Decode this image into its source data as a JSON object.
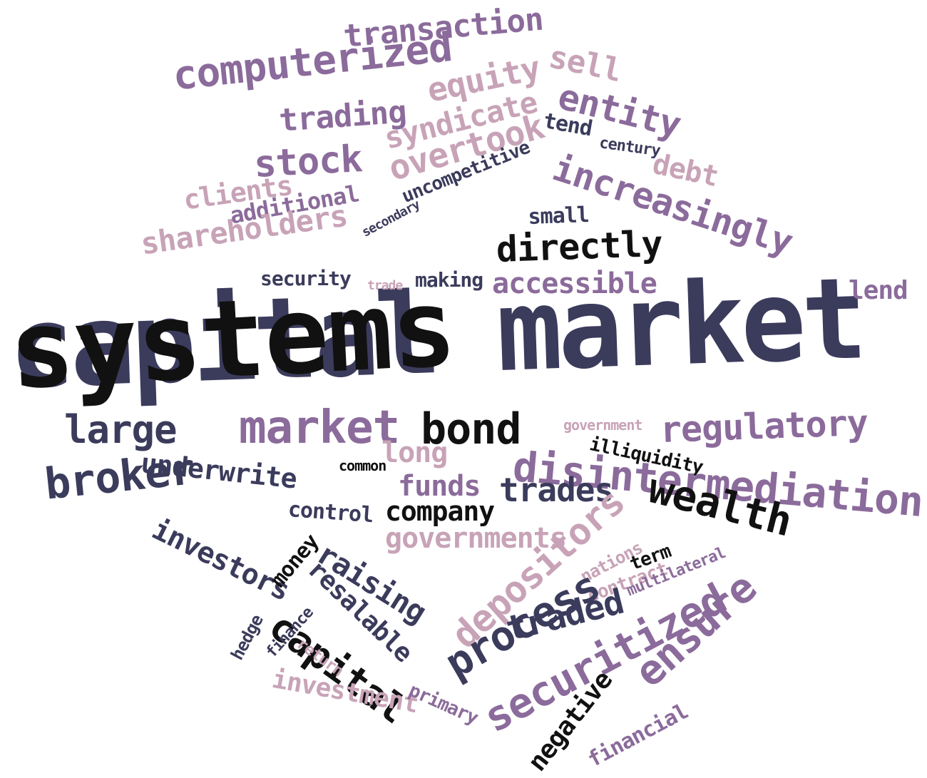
{
  "palette": {
    "navy": "#3b3b5c",
    "black": "#111111",
    "purple": "#8b6b9b",
    "mauve": "#c8a3b7"
  },
  "headline": "capital market",
  "words": [
    {
      "text": "transaction",
      "color": "purple"
    },
    {
      "text": "computerized",
      "color": "purple"
    },
    {
      "text": "sell",
      "color": "mauve"
    },
    {
      "text": "equity",
      "color": "mauve"
    },
    {
      "text": "entity",
      "color": "purple"
    },
    {
      "text": "trading",
      "color": "purple"
    },
    {
      "text": "syndicate",
      "color": "mauve"
    },
    {
      "text": "tend",
      "color": "navy"
    },
    {
      "text": "century",
      "color": "navy"
    },
    {
      "text": "debt",
      "color": "mauve"
    },
    {
      "text": "stock",
      "color": "purple"
    },
    {
      "text": "overtook",
      "color": "mauve"
    },
    {
      "text": "increasingly",
      "color": "purple"
    },
    {
      "text": "clients",
      "color": "mauve"
    },
    {
      "text": "additional",
      "color": "purple"
    },
    {
      "text": "uncompetitive",
      "color": "navy"
    },
    {
      "text": "small",
      "color": "navy"
    },
    {
      "text": "secondary",
      "color": "navy"
    },
    {
      "text": "shareholders",
      "color": "mauve"
    },
    {
      "text": "directly",
      "color": "black"
    },
    {
      "text": "lend",
      "color": "purple"
    },
    {
      "text": "security",
      "color": "navy"
    },
    {
      "text": "trade",
      "color": "mauve"
    },
    {
      "text": "making",
      "color": "navy"
    },
    {
      "text": "accessible",
      "color": "purple"
    },
    {
      "text": "systems",
      "color": "black"
    },
    {
      "text": "large",
      "color": "navy"
    },
    {
      "text": "market",
      "color": "purple"
    },
    {
      "text": "bond",
      "color": "black"
    },
    {
      "text": "government",
      "color": "mauve"
    },
    {
      "text": "regulatory",
      "color": "purple"
    },
    {
      "text": "illiquidity",
      "color": "black"
    },
    {
      "text": "long",
      "color": "mauve"
    },
    {
      "text": "common",
      "color": "black"
    },
    {
      "text": "disintermediation",
      "color": "purple"
    },
    {
      "text": "underwrite",
      "color": "navy"
    },
    {
      "text": "broker",
      "color": "navy"
    },
    {
      "text": "funds",
      "color": "purple"
    },
    {
      "text": "trades",
      "color": "navy"
    },
    {
      "text": "wealth",
      "color": "black"
    },
    {
      "text": "control",
      "color": "navy"
    },
    {
      "text": "company",
      "color": "black"
    },
    {
      "text": "investors",
      "color": "navy"
    },
    {
      "text": "governments",
      "color": "mauve"
    },
    {
      "text": "depositors",
      "color": "mauve"
    },
    {
      "text": "nations",
      "color": "mauve"
    },
    {
      "text": "money",
      "color": "black"
    },
    {
      "text": "raising",
      "color": "navy"
    },
    {
      "text": "term",
      "color": "black"
    },
    {
      "text": "contract",
      "color": "mauve"
    },
    {
      "text": "multilateral",
      "color": "purple"
    },
    {
      "text": "resalable",
      "color": "navy"
    },
    {
      "text": "ensure",
      "color": "purple"
    },
    {
      "text": "process",
      "color": "navy"
    },
    {
      "text": "traded",
      "color": "navy"
    },
    {
      "text": "capital",
      "color": "black"
    },
    {
      "text": "hedge",
      "color": "navy"
    },
    {
      "text": "finance",
      "color": "navy"
    },
    {
      "text": "return",
      "color": "mauve"
    },
    {
      "text": "securitized",
      "color": "purple"
    },
    {
      "text": "investment",
      "color": "mauve"
    },
    {
      "text": "primary",
      "color": "purple"
    },
    {
      "text": "negative",
      "color": "black"
    },
    {
      "text": "financial",
      "color": "purple"
    }
  ]
}
